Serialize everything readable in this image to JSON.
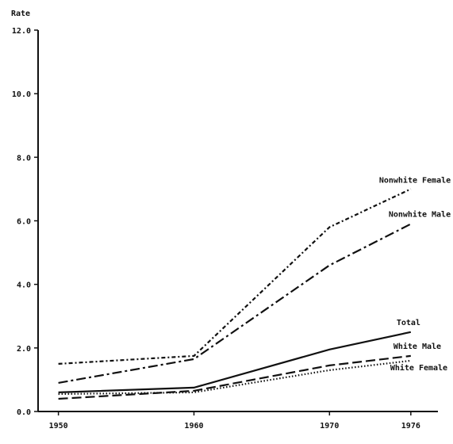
{
  "chart_data": {
    "type": "line",
    "title": "",
    "xlabel": "",
    "ylabel": "Rate",
    "x": [
      1950,
      1960,
      1970,
      1976
    ],
    "xlim": [
      1948.5,
      1978
    ],
    "ylim": [
      0,
      12
    ],
    "y_ticks": [
      "0.0",
      "2.0",
      "4.0",
      "6.0",
      "8.0",
      "10.0",
      "12.0"
    ],
    "x_ticks": [
      "1950",
      "1960",
      "1970",
      "1976"
    ],
    "grid": false,
    "legend": "direct labels at right end of lines",
    "series": [
      {
        "name": "Nonwhite Female",
        "values": [
          1.5,
          1.75,
          5.8,
          7.0
        ],
        "dash": "5 3 2 3"
      },
      {
        "name": "Nonwhite Male",
        "values": [
          0.9,
          1.65,
          4.6,
          5.9
        ],
        "dash": "12 4 3 4"
      },
      {
        "name": "Total",
        "values": [
          0.6,
          0.75,
          1.95,
          2.5
        ],
        "dash": "none"
      },
      {
        "name": "White Male",
        "values": [
          0.4,
          0.65,
          1.45,
          1.75
        ],
        "dash": "12 5"
      },
      {
        "name": "White Female",
        "values": [
          0.55,
          0.6,
          1.3,
          1.6
        ],
        "dash": "1.5 2.5"
      }
    ]
  }
}
